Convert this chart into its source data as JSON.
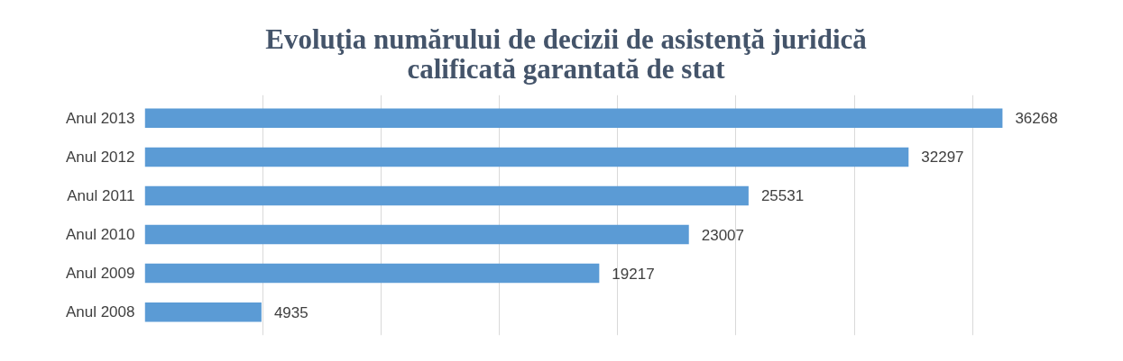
{
  "chart_data": {
    "type": "bar",
    "orientation": "horizontal",
    "title": "Evoluţia numărului de decizii de asistenţă juridică calificată garantată de stat",
    "categories": [
      "Anul 2013",
      "Anul 2012",
      "Anul 2011",
      "Anul 2010",
      "Anul 2009",
      "Anul 2008"
    ],
    "values": [
      36268,
      32297,
      25531,
      23007,
      19217,
      4935
    ],
    "color": "#5b9bd5",
    "tick_labels": "y",
    "grid": "x",
    "data_labels": true
  }
}
